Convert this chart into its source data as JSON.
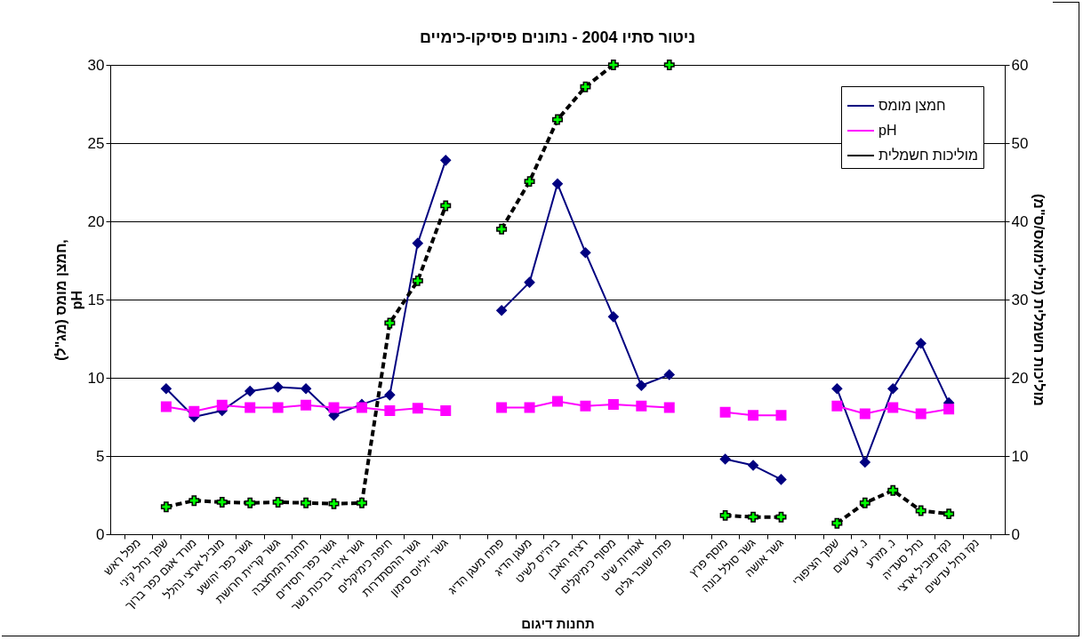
{
  "chart_data": {
    "type": "line",
    "title": "ניטור סתיו 2004 - נתונים פיסיקו-כימיים",
    "xlabel": "תחנות דיגום",
    "ylabel": "חמצן מומס (מג\"ל),\npH",
    "y2label": "מוליכות חשמלית (מילימואס/ס\"מ)",
    "categories": [
      "מפל ראש",
      "שפך נחל קיני",
      "מורד אגם כפר ברוך",
      "מוביל ארצי נהלל",
      "גשר כפר יהושע",
      "גשר קריית חרושת",
      "תחנת המחצבה",
      "גשר כפר חסידים",
      "גשר אירי ברכות נשר",
      "חיפה כימיקלים",
      "גשר ההסתדרות",
      "גשר יוליוס סימון",
      null,
      "פתח מעגן הדיג",
      "מעגן הדיג",
      "ביה\"ס לשיט",
      "רציף האבן",
      "מסוף כימיקלים",
      "אגודות שיט",
      "פתח שובר גלים",
      null,
      "מוסף פרץ",
      "גשר סולל בונה",
      "גשר אושה",
      null,
      "שפך הציפורי",
      "נ. עדשים",
      "נ. מזרע",
      "נחל סעדיה",
      "נקז מוביל ארצי",
      "נקז נחל עדשים"
    ],
    "series": [
      {
        "name": "חמצן מומס",
        "color": "#000080",
        "marker": "diamond",
        "line_style": "solid",
        "values": [
          null,
          9.3,
          7.5,
          7.9,
          9.15,
          9.4,
          9.3,
          7.6,
          8.3,
          8.9,
          18.6,
          23.9,
          null,
          14.3,
          16.1,
          22.4,
          18.0,
          13.9,
          9.5,
          10.2,
          null,
          4.8,
          4.4,
          3.5,
          null,
          9.3,
          4.6,
          9.3,
          12.2,
          8.4,
          null
        ]
      },
      {
        "name": "pH",
        "color": "#ff00ff",
        "marker": "square",
        "line_style": "solid",
        "values": [
          null,
          8.15,
          7.85,
          8.25,
          8.1,
          8.1,
          8.25,
          8.1,
          8.1,
          7.9,
          8.05,
          7.9,
          null,
          8.1,
          8.1,
          8.5,
          8.2,
          8.3,
          8.2,
          8.1,
          null,
          7.8,
          7.6,
          7.6,
          null,
          8.2,
          7.7,
          8.1,
          7.7,
          8.0,
          null
        ]
      },
      {
        "name": "מוליכות חשמלית",
        "color": "#00ff00",
        "marker": "cross",
        "line_style": "dashed",
        "axis": "y2",
        "values": [
          null,
          3.5,
          4.3,
          4.1,
          4.0,
          4.1,
          4.0,
          3.9,
          4.0,
          27,
          32.4,
          42,
          null,
          39,
          45.1,
          53,
          57.2,
          60,
          null,
          60,
          null,
          2.4,
          2.2,
          2.2,
          null,
          1.4,
          4.0,
          5.6,
          3.0,
          2.6,
          null
        ]
      }
    ],
    "ylim": [
      0,
      30
    ],
    "yticks": [
      0,
      5,
      10,
      15,
      20,
      25,
      30
    ],
    "y2lim": [
      0,
      60
    ],
    "y2ticks": [
      0,
      10,
      20,
      30,
      40,
      50,
      60
    ],
    "grid": "y",
    "legend": "top right"
  }
}
